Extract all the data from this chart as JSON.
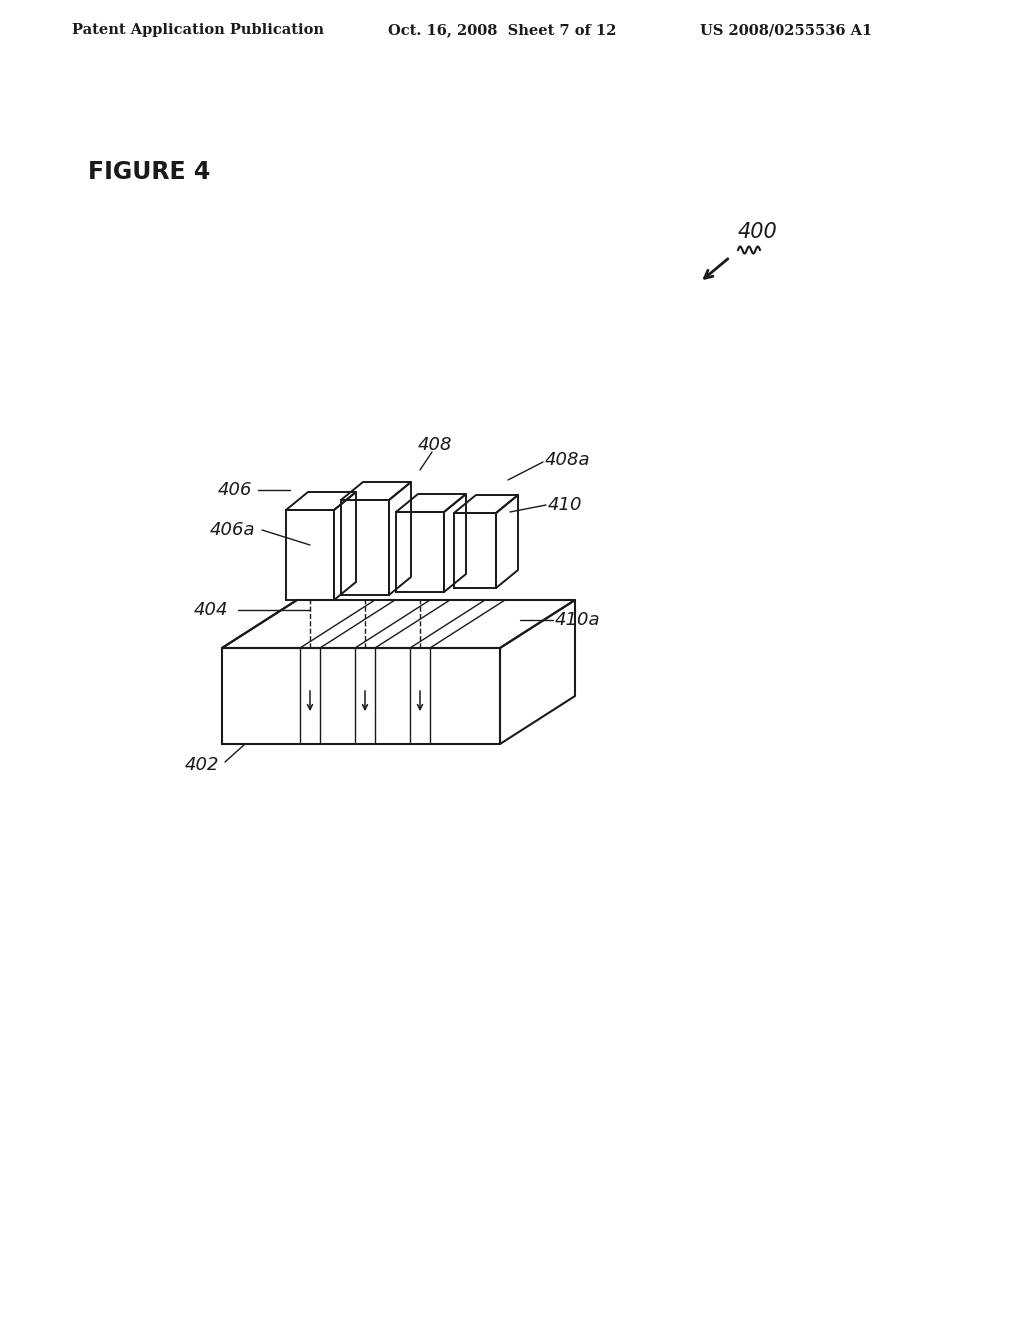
{
  "bg_color": "#ffffff",
  "header_left": "Patent Application Publication",
  "header_center": "Oct. 16, 2008  Sheet 7 of 12",
  "header_right": "US 2008/0255536 A1",
  "figure_label": "FIGURE 4",
  "ref_400": "400",
  "ref_402": "402",
  "ref_404": "404",
  "ref_406": "406",
  "ref_406a": "406a",
  "ref_408": "408",
  "ref_408a": "408a",
  "ref_410": "410",
  "ref_410a": "410a",
  "line_color": "#1a1a1a",
  "header_fontsize": 10.5,
  "figure_label_fontsize": 17,
  "ref_fontsize": 13
}
